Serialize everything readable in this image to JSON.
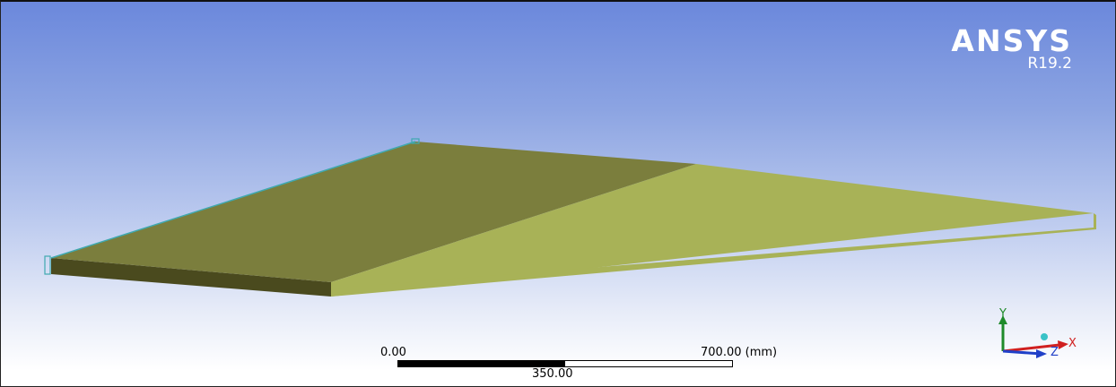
{
  "brand": {
    "name": "ANSYS",
    "version": "R19.2"
  },
  "scale": {
    "min_label": "0.00",
    "mid_label": "350.00",
    "max_label": "700.00 (mm)"
  },
  "triad": {
    "x_label": "X",
    "y_label": "Y",
    "z_label": "Z"
  },
  "colors": {
    "top_face_dark": "#7b7e3d",
    "top_face_light": "#a8b257",
    "front_face": "#4a4a1e",
    "edge_highlight": "#3fa9b0",
    "axis_x": "#d02020",
    "axis_y": "#1e8a2a",
    "axis_z": "#2040c8"
  }
}
